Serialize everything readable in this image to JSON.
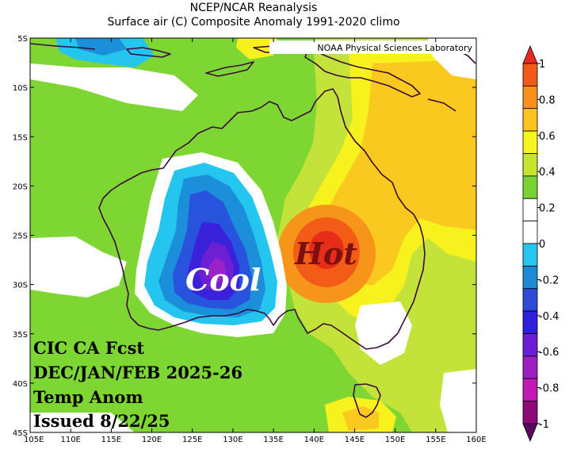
{
  "title_line1": "NCEP/NCAR Reanalysis",
  "title_line2": "Surface air (C) Composite Anomaly 1991-2020 climo",
  "credit": "NOAA Physical Sciences Laboratory",
  "annotations": {
    "cool_label": "Cool",
    "hot_label": "Hot",
    "forecast_lines": [
      "CIC CA Fcst",
      "DEC/JAN/FEB 2025-26",
      "Temp Anom",
      "Issued 8/22/25"
    ]
  },
  "axes": {
    "lat_ticks": [
      "5S",
      "10S",
      "15S",
      "20S",
      "25S",
      "30S",
      "35S",
      "40S",
      "45S"
    ],
    "lon_ticks": [
      "105E",
      "110E",
      "115E",
      "120E",
      "125E",
      "130E",
      "135E",
      "140E",
      "145E",
      "150E",
      "155E",
      "160E"
    ]
  },
  "colorbar": {
    "labels": [
      "1",
      "0.8",
      "0.6",
      "0.4",
      "0.2",
      "0",
      "-0.2",
      "-0.4",
      "-0.6",
      "-0.8",
      "-1"
    ],
    "colors": [
      "#e8281e",
      "#f25a1a",
      "#f7901c",
      "#fcc422",
      "#f7f520",
      "#c5e430",
      "#78d231",
      "#ffffff",
      "#ffffff",
      "#28c6ec",
      "#1e8ad6",
      "#2e4bd8",
      "#2f1fde",
      "#6a1ed6",
      "#9a1ec0",
      "#c019b4",
      "#8c0a78",
      "#5a0a5e"
    ]
  },
  "map_colors": {
    "green": "#7ed633",
    "light_green": "#c3e33a",
    "yellow": "#f7f21d",
    "gold": "#f9c920",
    "orange": "#f7951a",
    "dark_orange": "#f35c17",
    "red": "#e72c1a",
    "white": "#ffffff",
    "cyan": "#24c5ee",
    "sky": "#1b8fda",
    "blue": "#2853dc",
    "indigo": "#3a21db",
    "violet": "#6d1fd4",
    "purple": "#9b22c6"
  }
}
